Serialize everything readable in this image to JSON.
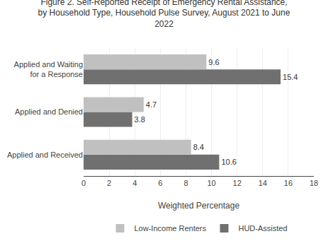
{
  "chart_data": {
    "type": "bar",
    "orientation": "horizontal",
    "title": "Figure 2. Self-Reported Receipt of Emergency Rental Assistance, by Household Type, Household Pulse Survey, August 2021 to June 2022",
    "x_label": "Weighted Percentage",
    "categories": [
      "Applied and Received",
      "Applied and Denied",
      "Applied and Waiting for a Response"
    ],
    "series": [
      {
        "name": "Low-Income Renters",
        "color": "#c0c0c0",
        "values": [
          8.4,
          4.7,
          9.6
        ]
      },
      {
        "name": "HUD-Assisted",
        "color": "#707070",
        "values": [
          10.6,
          3.8,
          15.4
        ]
      }
    ],
    "xlim": [
      0,
      18
    ],
    "xticks": [
      0,
      2,
      4,
      6,
      8,
      10,
      12,
      14,
      16,
      18
    ],
    "grid": true,
    "legend": "bottom",
    "data_labels": true
  }
}
